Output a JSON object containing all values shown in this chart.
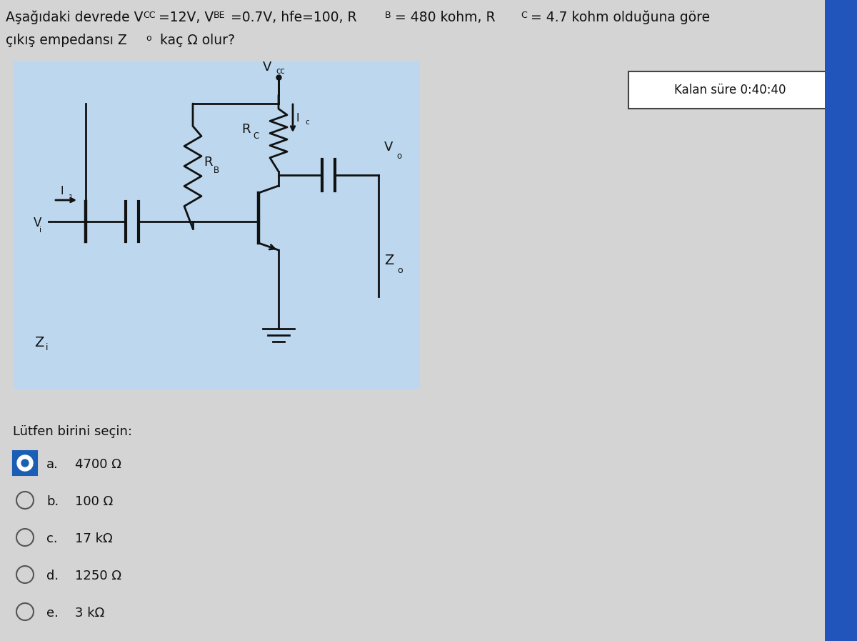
{
  "prompt": "Lütfen birini seçin:",
  "options": [
    {
      "letter": "a.",
      "text": "4700 Ω",
      "selected": true
    },
    {
      "letter": "b.",
      "text": "100 Ω",
      "selected": false
    },
    {
      "letter": "c.",
      "text": "17 kΩ",
      "selected": false
    },
    {
      "letter": "d.",
      "text": "1250 Ω",
      "selected": false
    },
    {
      "letter": "e.",
      "text": "3 kΩ",
      "selected": false
    }
  ],
  "timer_label": "Kalan süre 0:40:40",
  "bg_color": "#d4d4d4",
  "circuit_bg": "#bdd8ee",
  "selected_color": "#1a5fb4",
  "line_color": "#111111",
  "timer_bg": "#ffffff",
  "timer_border": "#444444"
}
